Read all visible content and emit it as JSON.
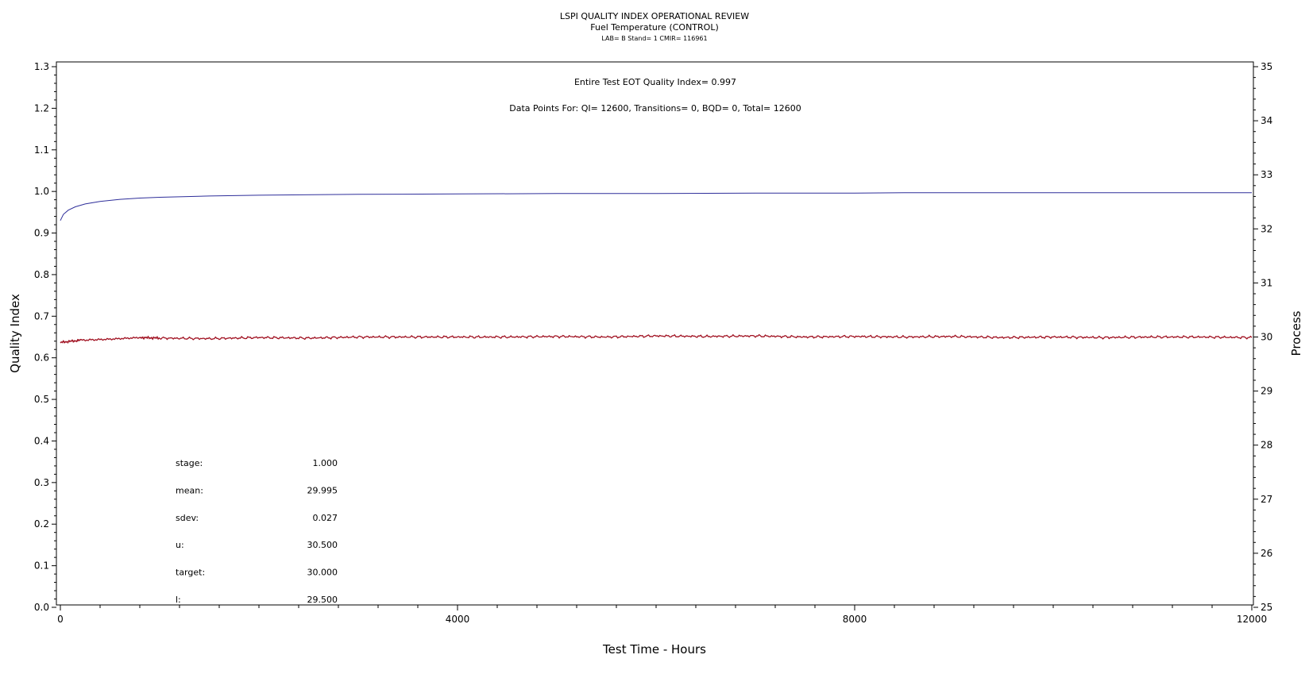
{
  "chart_data": {
    "type": "line",
    "title": "LSPI QUALITY INDEX OPERATIONAL REVIEW",
    "subtitle": "Fuel Temperature (CONTROL)",
    "meta_line": "LAB= B Stand= 1 CMIR= 116961",
    "annotations": [
      "Entire Test EOT Quality Index=    0.997",
      "Data Points For: QI= 12600, Transitions=      0, BQD=      0, Total= 12600"
    ],
    "xlabel": "Test Time - Hours",
    "ylabel_left": "Quality Index",
    "ylabel_right": "Process",
    "xlim": [
      0,
      12000
    ],
    "ylim_left": [
      0.0,
      1.3
    ],
    "ylim_right": [
      25,
      35
    ],
    "x_ticks": [
      "0",
      "4000",
      "8000",
      "12000"
    ],
    "y_left_ticks": [
      "0.0",
      "0.1",
      "0.2",
      "0.3",
      "0.4",
      "0.5",
      "0.6",
      "0.7",
      "0.8",
      "0.9",
      "1.0",
      "1.1",
      "1.2",
      "1.3"
    ],
    "y_right_ticks": [
      "25",
      "26",
      "27",
      "28",
      "29",
      "30",
      "31",
      "32",
      "33",
      "34",
      "35"
    ],
    "grid": false,
    "series": [
      {
        "axis": "left",
        "color": "#2e2e9a",
        "x": [
          0,
          30,
          80,
          150,
          250,
          400,
          600,
          800,
          1000,
          1500,
          2000,
          3000,
          4000,
          5000,
          6000,
          7000,
          8000,
          8500,
          9000,
          10000,
          11000,
          12000
        ],
        "values": [
          0.93,
          0.945,
          0.955,
          0.963,
          0.97,
          0.976,
          0.981,
          0.984,
          0.986,
          0.989,
          0.991,
          0.993,
          0.994,
          0.995,
          0.995,
          0.996,
          0.996,
          0.997,
          0.997,
          0.997,
          0.997,
          0.997
        ]
      },
      {
        "axis": "right",
        "color": "#a01020",
        "x": [
          0,
          200,
          500,
          800,
          1000,
          1500,
          2000,
          2500,
          3000,
          3500,
          4000,
          4500,
          5000,
          5500,
          6000,
          6500,
          7000,
          7500,
          8000,
          8500,
          9000,
          9500,
          10000,
          10500,
          11000,
          11500,
          12000
        ],
        "values": [
          29.9,
          29.94,
          29.96,
          29.99,
          29.98,
          29.97,
          29.99,
          29.98,
          30.0,
          30.0,
          30.0,
          30.0,
          30.01,
          30.0,
          30.02,
          30.01,
          30.02,
          30.0,
          30.01,
          30.0,
          30.01,
          29.99,
          30.0,
          29.99,
          30.0,
          30.0,
          29.99
        ]
      }
    ]
  },
  "stats": [
    {
      "label": "stage:",
      "value": "1.000"
    },
    {
      "label": "mean:",
      "value": "29.995"
    },
    {
      "label": "sdev:",
      "value": "0.027"
    },
    {
      "label": "u:",
      "value": "30.500"
    },
    {
      "label": "target:",
      "value": "30.000"
    },
    {
      "label": "l:",
      "value": "29.500"
    }
  ]
}
